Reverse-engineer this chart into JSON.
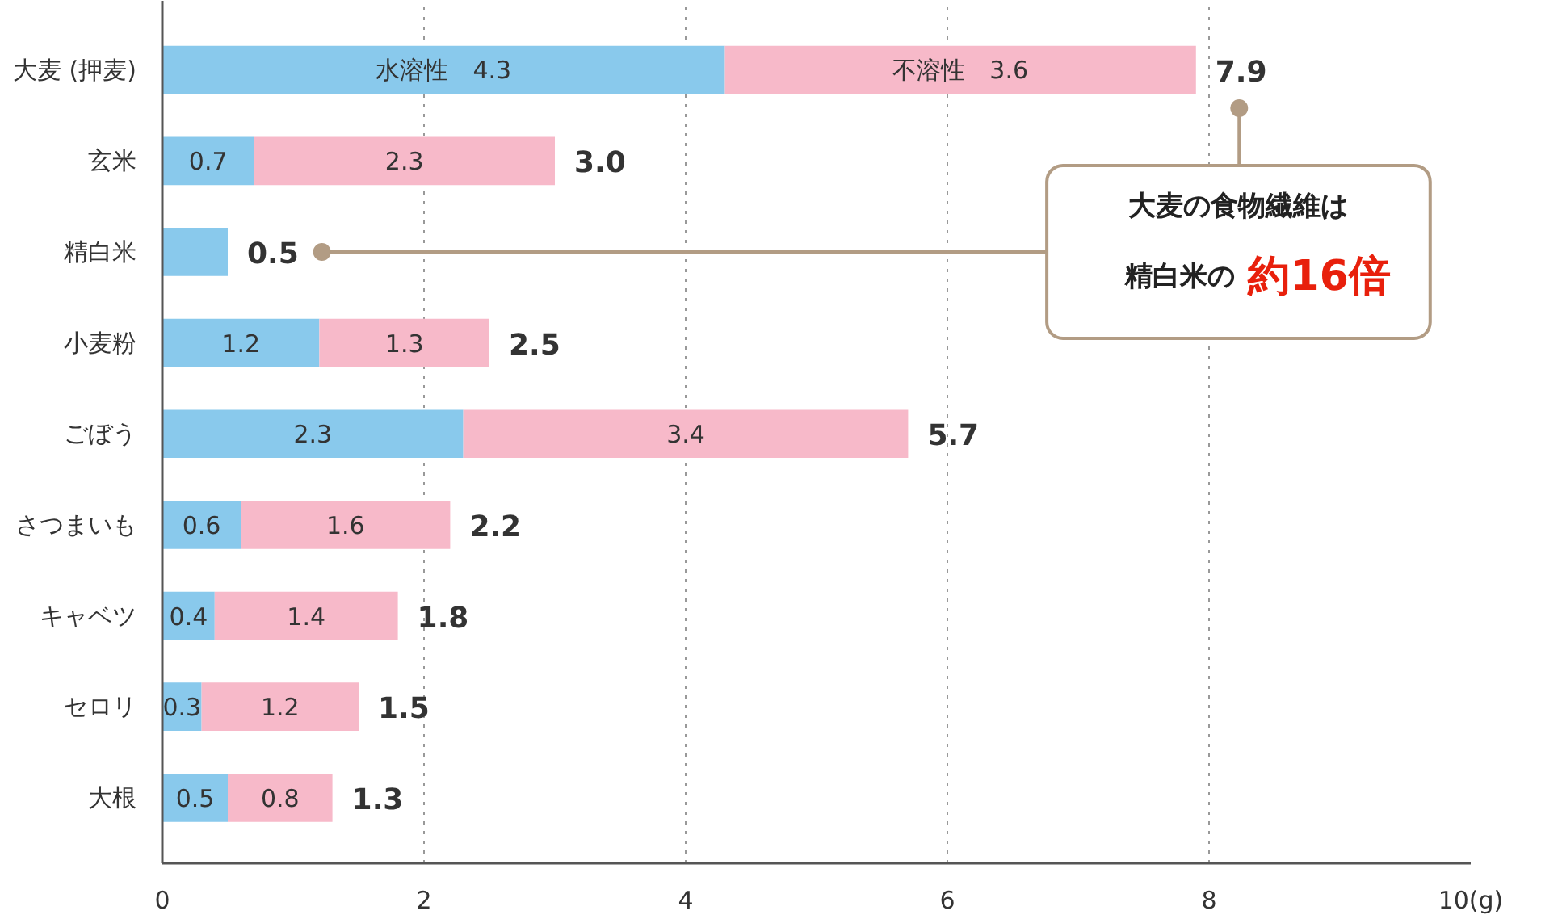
{
  "chart_data": {
    "type": "bar",
    "orientation": "horizontal",
    "stacked": true,
    "categories": [
      "大麦 (押麦)",
      "玄米",
      "精白米",
      "小麦粉",
      "ごぼう",
      "さつまいも",
      "キャベツ",
      "セロリ",
      "大根"
    ],
    "series": [
      {
        "color": "#89c9ec",
        "values": [
          4.3,
          0.7,
          0.5,
          1.2,
          2.3,
          0.6,
          0.4,
          0.3,
          0.5
        ],
        "value_labels": [
          "水溶性　4.3",
          "0.7",
          null,
          "1.2",
          "2.3",
          "0.6",
          "0.4",
          "0.3",
          "0.5"
        ]
      },
      {
        "color": "#f7b9c9",
        "values": [
          3.6,
          2.3,
          null,
          1.3,
          3.4,
          1.6,
          1.4,
          1.2,
          0.8
        ],
        "value_labels": [
          "不溶性　3.6",
          "2.3",
          null,
          "1.3",
          "3.4",
          "1.6",
          "1.4",
          "1.2",
          "0.8"
        ]
      }
    ],
    "totals": [
      "7.9",
      "3.0",
      "0.5",
      "2.5",
      "5.7",
      "2.2",
      "1.8",
      "1.5",
      "1.3"
    ],
    "xlim": [
      0,
      10
    ],
    "xticks": [
      0,
      2,
      4,
      6,
      8,
      {
        "value": 10,
        "label": "10(g)"
      }
    ],
    "grid": "x",
    "annotations": [
      "大麦の食物繊維は",
      "精白米の",
      "約16倍"
    ]
  }
}
